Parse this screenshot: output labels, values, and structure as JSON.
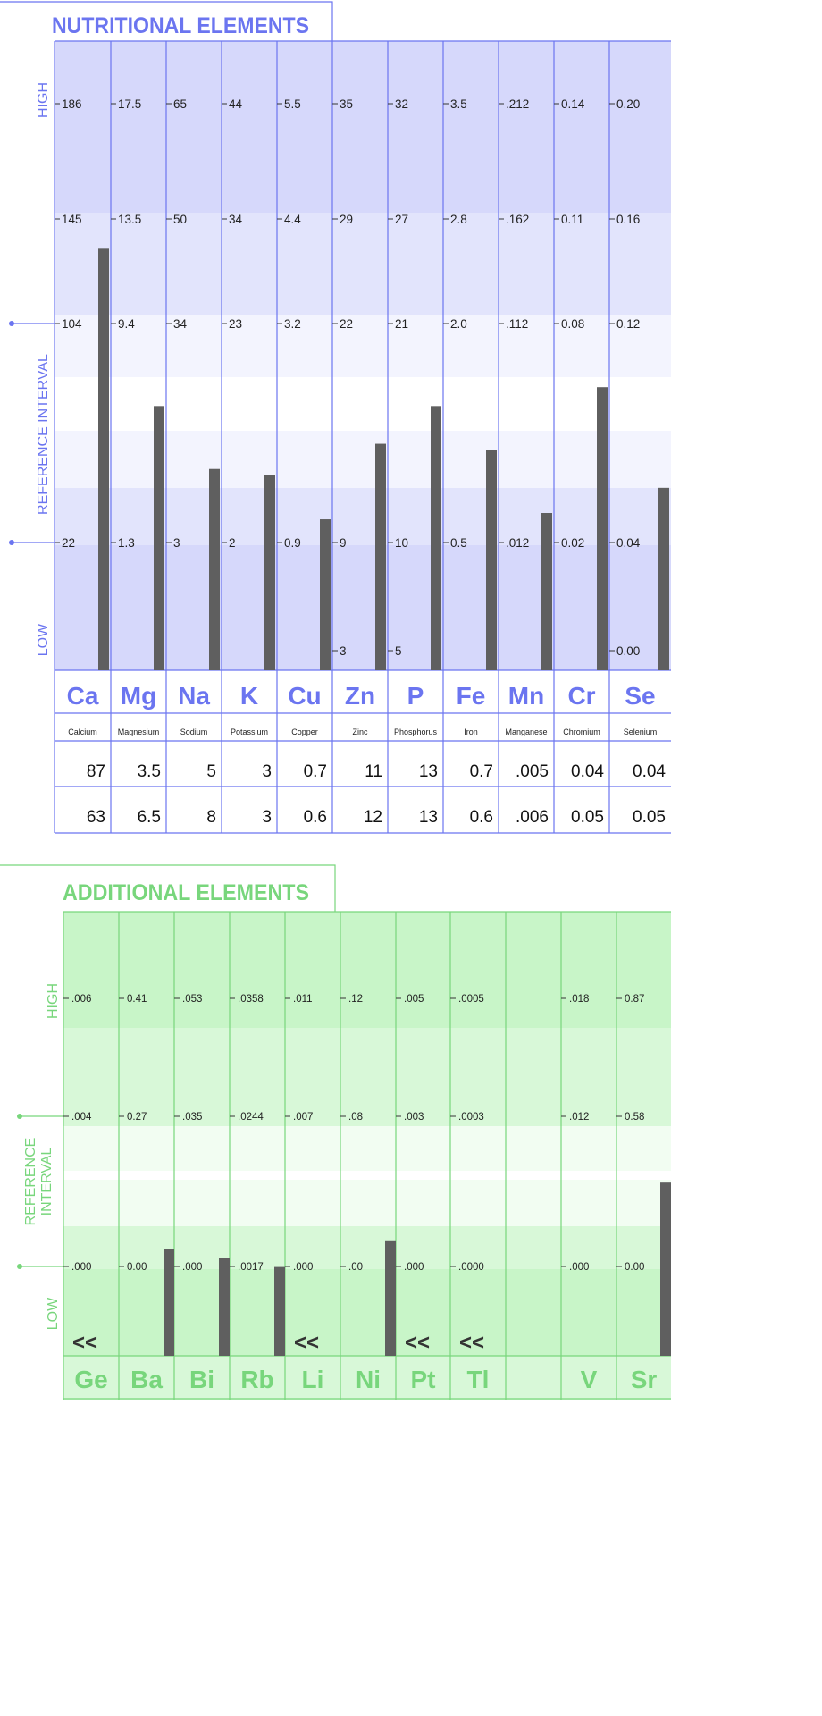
{
  "chart_data": [
    {
      "type": "bar",
      "title": "NUTRITIONAL ELEMENTS",
      "zone_labels": {
        "high": "HIGH",
        "interval": "REFERENCE INTERVAL",
        "low": "LOW"
      },
      "colors": {
        "accent": "#6b75f0",
        "band_dark": "#d6d8fb",
        "band_mid": "#e2e4fc",
        "band_light": "#f3f4fe",
        "bar": "#5f5f5f"
      },
      "elements": [
        {
          "symbol": "Ca",
          "name": "Calcium",
          "ticks": {
            "high": "186",
            "upper": "145",
            "ref_high": "104",
            "ref_low": "22"
          },
          "row1": "87",
          "row2": "63",
          "bar_level": 0.67
        },
        {
          "symbol": "Mg",
          "name": "Magnesium",
          "ticks": {
            "high": "17.5",
            "upper": "13.5",
            "ref_high": "9.4",
            "ref_low": "1.3"
          },
          "row1": "3.5",
          "row2": "6.5",
          "bar_level": 0.42
        },
        {
          "symbol": "Na",
          "name": "Sodium",
          "ticks": {
            "high": "65",
            "upper": "50",
            "ref_high": "34",
            "ref_low": "3"
          },
          "row1": "5",
          "row2": "8",
          "bar_level": 0.32
        },
        {
          "symbol": "K",
          "name": "Potassium",
          "ticks": {
            "high": "44",
            "upper": "34",
            "ref_high": "23",
            "ref_low": "2"
          },
          "row1": "3",
          "row2": "3",
          "bar_level": 0.31
        },
        {
          "symbol": "Cu",
          "name": "Copper",
          "ticks": {
            "high": "5.5",
            "upper": "4.4",
            "ref_high": "3.2",
            "ref_low": "0.9"
          },
          "row1": "0.7",
          "row2": "0.6",
          "bar_level": 0.24
        },
        {
          "symbol": "Zn",
          "name": "Zinc",
          "ticks": {
            "high": "35",
            "upper": "29",
            "ref_high": "22",
            "ref_low": "9",
            "low": "3"
          },
          "row1": "11",
          "row2": "12",
          "bar_level": 0.36
        },
        {
          "symbol": "P",
          "name": "Phosphorus",
          "ticks": {
            "high": "32",
            "upper": "27",
            "ref_high": "21",
            "ref_low": "10",
            "low": "5"
          },
          "row1": "13",
          "row2": "13",
          "bar_level": 0.42
        },
        {
          "symbol": "Fe",
          "name": "Iron",
          "ticks": {
            "high": "3.5",
            "upper": "2.8",
            "ref_high": "2.0",
            "ref_low": "0.5"
          },
          "row1": "0.7",
          "row2": "0.6",
          "bar_level": 0.35
        },
        {
          "symbol": "Mn",
          "name": "Manganese",
          "ticks": {
            "high": ".212",
            "upper": ".162",
            "ref_high": ".112",
            "ref_low": ".012"
          },
          "row1": ".005",
          "row2": ".006",
          "bar_level": 0.25
        },
        {
          "symbol": "Cr",
          "name": "Chromium",
          "ticks": {
            "high": "0.14",
            "upper": "0.11",
            "ref_high": "0.08",
            "ref_low": "0.02"
          },
          "row1": "0.04",
          "row2": "0.05",
          "bar_level": 0.45
        },
        {
          "symbol": "Se",
          "name": "Selenium",
          "ticks": {
            "high": "0.20",
            "upper": "0.16",
            "ref_high": "0.12",
            "ref_low": "0.04",
            "low": "0.00"
          },
          "row1": "0.04",
          "row2": "0.05",
          "bar_level": 0.29
        }
      ]
    },
    {
      "type": "bar",
      "title": "ADDITIONAL  ELEMENTS",
      "zone_labels": {
        "high": "HIGH",
        "interval_line1": "REFERENCE",
        "interval_line2": "INTERVAL",
        "low": "LOW"
      },
      "colors": {
        "accent": "#78d67c",
        "band_dark": "#c8f5c8",
        "band_mid": "#d8f8d8",
        "band_light": "#f2fdf2",
        "bar": "#5f5f5f"
      },
      "elements": [
        {
          "symbol": "Ge",
          "ticks": {
            "high": ".006",
            "upper": ".004",
            "ref_low": ".000"
          },
          "below_marker": "<<"
        },
        {
          "symbol": "Ba",
          "ticks": {
            "high": "0.41",
            "upper": "0.27",
            "ref_low": "0.00"
          },
          "bar_level": 0.24
        },
        {
          "symbol": "Bi",
          "ticks": {
            "high": ".053",
            "upper": ".035",
            "ref_low": ".000"
          },
          "bar_level": 0.22
        },
        {
          "symbol": "Rb",
          "ticks": {
            "high": ".0358",
            "upper": ".0244",
            "ref_low": ".0017"
          },
          "bar_level": 0.2
        },
        {
          "symbol": "Li",
          "ticks": {
            "high": ".011",
            "upper": ".007",
            "ref_low": ".000"
          },
          "below_marker": "<<"
        },
        {
          "symbol": "Ni",
          "ticks": {
            "high": ".12",
            "upper": ".08",
            "ref_low": ".00"
          },
          "bar_level": 0.26
        },
        {
          "symbol": "Pt",
          "ticks": {
            "high": ".005",
            "upper": ".003",
            "ref_low": ".000"
          },
          "below_marker": "<<"
        },
        {
          "symbol": "Tl",
          "ticks": {
            "high": ".0005",
            "upper": ".0003",
            "ref_low": ".0000"
          },
          "below_marker": "<<"
        },
        {
          "symbol": "",
          "ticks": {}
        },
        {
          "symbol": "V",
          "ticks": {
            "high": ".018",
            "upper": ".012",
            "ref_low": ".000"
          }
        },
        {
          "symbol": "Sr",
          "ticks": {
            "high": "0.87",
            "upper": "0.58",
            "ref_low": "0.00"
          },
          "bar_level": 0.39
        }
      ]
    }
  ]
}
